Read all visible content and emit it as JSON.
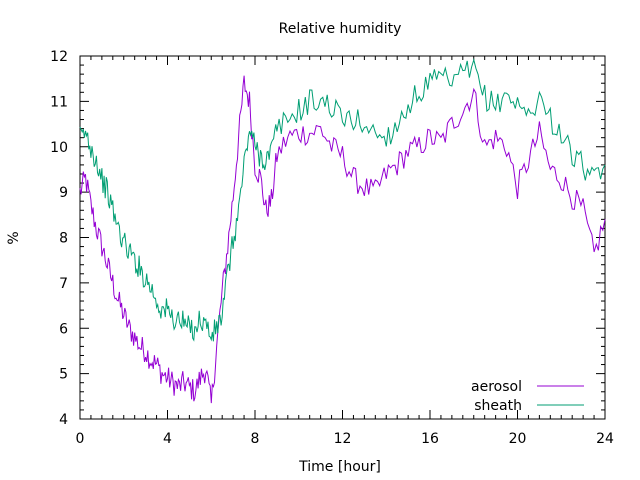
{
  "chart_data": {
    "type": "line",
    "title": "Relative humidity",
    "xlabel": "Time [hour]",
    "ylabel": "%",
    "xlim": [
      0,
      24
    ],
    "ylim": [
      4,
      12
    ],
    "xticks": [
      0,
      4,
      8,
      12,
      16,
      20,
      24
    ],
    "xtick_labels": [
      "0",
      "4",
      "8",
      "12",
      "16",
      "20",
      "24"
    ],
    "yticks": [
      4,
      5,
      6,
      7,
      8,
      9,
      10,
      11,
      12
    ],
    "ytick_labels": [
      "4",
      "5",
      "6",
      "7",
      "8",
      "9",
      "10",
      "11",
      "12"
    ],
    "grid": false,
    "legend_position": "bottom-right",
    "series": [
      {
        "name": "aerosol",
        "color": "#9400d3",
        "x": [
          0,
          0.25,
          0.5,
          0.75,
          1.0,
          1.25,
          1.5,
          1.75,
          2.0,
          2.25,
          2.5,
          2.75,
          3.0,
          3.25,
          3.5,
          3.75,
          4.0,
          4.25,
          4.5,
          4.75,
          5.0,
          5.25,
          5.5,
          5.75,
          6.0,
          6.25,
          6.5,
          6.75,
          7.0,
          7.25,
          7.5,
          7.75,
          8.0,
          8.25,
          8.5,
          8.75,
          9.0,
          9.5,
          10.0,
          10.5,
          11.0,
          11.5,
          12.0,
          12.5,
          13.0,
          13.5,
          14.0,
          14.5,
          15.0,
          15.5,
          16.0,
          16.5,
          17.0,
          17.5,
          18.0,
          18.5,
          19.0,
          19.5,
          20.0,
          20.5,
          21.0,
          21.5,
          22.0,
          22.5,
          23.0,
          23.5,
          24.0
        ],
        "y": [
          9.0,
          9.3,
          8.7,
          8.2,
          7.8,
          7.4,
          7.0,
          6.6,
          6.3,
          6.0,
          5.8,
          5.6,
          5.5,
          5.3,
          5.2,
          5.0,
          4.9,
          4.8,
          4.7,
          4.8,
          4.7,
          4.6,
          4.9,
          5.1,
          4.3,
          5.6,
          6.8,
          7.8,
          8.9,
          10.2,
          11.4,
          11.0,
          9.6,
          9.3,
          8.6,
          8.8,
          9.8,
          10.2,
          10.3,
          10.3,
          10.4,
          10.0,
          9.8,
          9.3,
          9.1,
          9.0,
          9.4,
          9.6,
          9.9,
          10.0,
          10.2,
          10.1,
          10.5,
          10.8,
          11.2,
          10.0,
          10.2,
          10.0,
          9.1,
          9.7,
          10.3,
          9.5,
          9.3,
          8.9,
          8.6,
          7.6,
          8.4
        ]
      },
      {
        "name": "sheath",
        "color": "#009e73",
        "x": [
          0,
          0.25,
          0.5,
          0.75,
          1.0,
          1.25,
          1.5,
          1.75,
          2.0,
          2.25,
          2.5,
          2.75,
          3.0,
          3.25,
          3.5,
          3.75,
          4.0,
          4.25,
          4.5,
          4.75,
          5.0,
          5.25,
          5.5,
          5.75,
          6.0,
          6.25,
          6.5,
          6.75,
          7.0,
          7.25,
          7.5,
          7.75,
          8.0,
          8.25,
          8.5,
          8.75,
          9.0,
          9.5,
          10.0,
          10.5,
          11.0,
          11.5,
          12.0,
          12.5,
          13.0,
          13.5,
          14.0,
          14.5,
          15.0,
          15.5,
          16.0,
          16.5,
          17.0,
          17.5,
          18.0,
          18.5,
          19.0,
          19.5,
          20.0,
          20.5,
          21.0,
          21.5,
          22.0,
          22.5,
          23.0,
          23.5,
          24.0
        ],
        "y": [
          10.2,
          10.3,
          10.0,
          9.7,
          9.3,
          9.0,
          8.6,
          8.2,
          7.9,
          7.7,
          7.5,
          7.3,
          7.1,
          6.9,
          6.6,
          6.4,
          6.4,
          6.2,
          6.2,
          6.1,
          6.0,
          6.0,
          6.2,
          6.1,
          5.8,
          6.0,
          6.3,
          7.2,
          7.9,
          8.6,
          9.6,
          10.4,
          10.0,
          9.8,
          9.7,
          9.9,
          10.4,
          10.6,
          10.8,
          11.0,
          11.0,
          10.9,
          10.6,
          10.6,
          10.5,
          10.3,
          10.2,
          10.5,
          10.9,
          11.2,
          11.4,
          11.5,
          11.4,
          11.6,
          11.7,
          11.1,
          10.9,
          11.2,
          10.9,
          10.7,
          11.1,
          10.6,
          10.3,
          9.8,
          9.6,
          9.2,
          9.6
        ]
      }
    ]
  }
}
